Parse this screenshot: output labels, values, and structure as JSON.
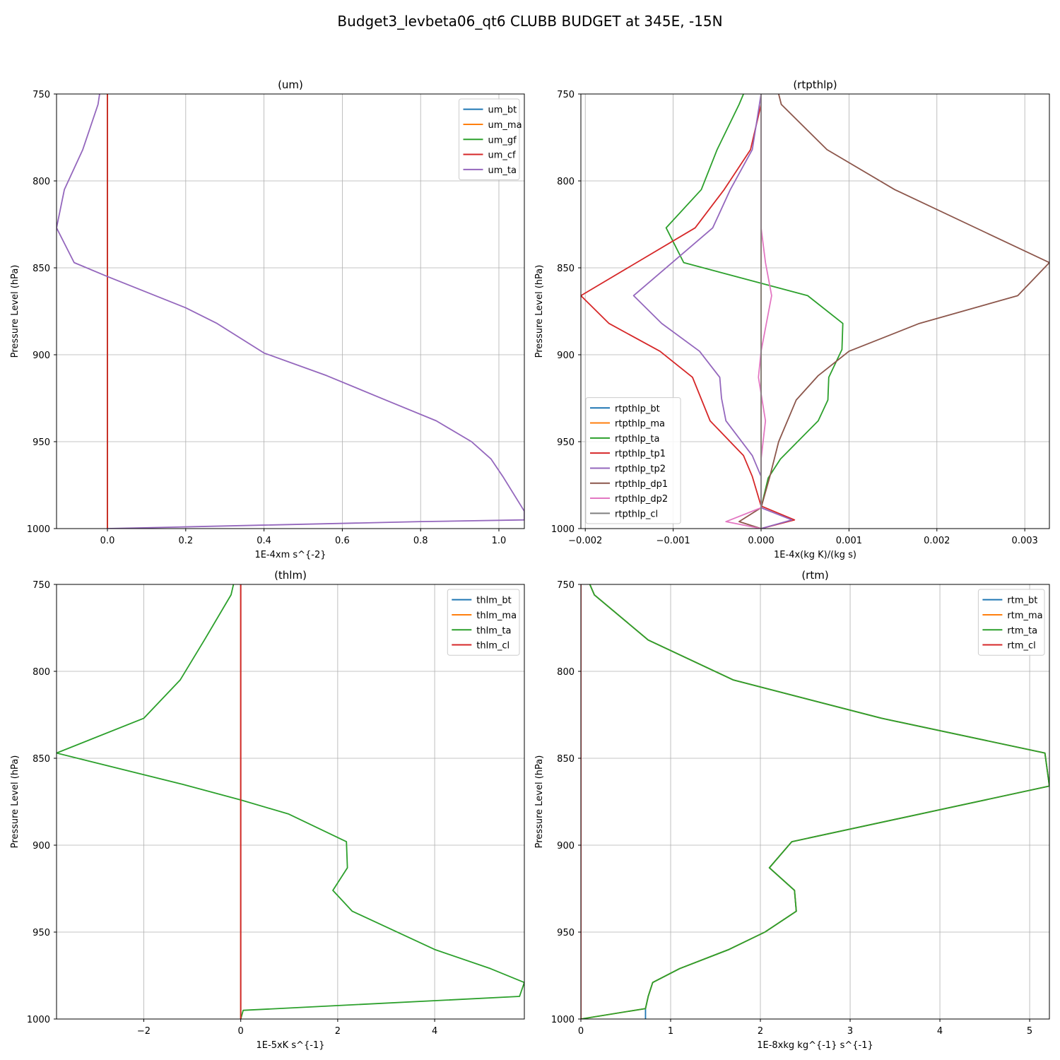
{
  "figure": {
    "title": "Budget3_levbeta06_qt6 CLUBB BUDGET at 345E, -15N"
  },
  "chart_data": [
    {
      "type": "line",
      "title": "(um)",
      "xlabel": "1E-4xm s^{-2}",
      "ylabel": "Pressure Level (hPa)",
      "xlim": [
        -0.13,
        1.065
      ],
      "ylim": [
        1000,
        750
      ],
      "y_inverted": true,
      "xticks": [
        0.0,
        0.2,
        0.4,
        0.6,
        0.8,
        1.0
      ],
      "xtick_labels": [
        "0.0",
        "0.2",
        "0.4",
        "0.6",
        "0.8",
        "1.0"
      ],
      "yticks": [
        750,
        800,
        850,
        900,
        950,
        1000
      ],
      "ytick_labels": [
        "750",
        "800",
        "850",
        "900",
        "950",
        "1000"
      ],
      "grid": true,
      "legend": "top-right",
      "series": [
        {
          "name": "um_bt",
          "color": "#1f77b4",
          "points": [
            [
              0,
              750
            ],
            [
              0,
              1000
            ]
          ]
        },
        {
          "name": "um_ma",
          "color": "#ff7f0e",
          "points": [
            [
              0,
              750
            ],
            [
              0,
              1000
            ]
          ]
        },
        {
          "name": "um_gf",
          "color": "#2ca02c",
          "points": [
            [
              0,
              750
            ],
            [
              0,
              1000
            ]
          ]
        },
        {
          "name": "um_cf",
          "color": "#d62728",
          "points": [
            [
              0,
              750
            ],
            [
              0,
              1000
            ]
          ]
        },
        {
          "name": "um_ta",
          "color": "#9467bd",
          "points": [
            [
              -0.02,
              750
            ],
            [
              -0.024,
              756
            ],
            [
              -0.063,
              782
            ],
            [
              -0.11,
              805
            ],
            [
              -0.13,
              827
            ],
            [
              -0.085,
              847
            ],
            [
              0.0,
              855
            ],
            [
              0.1,
              864
            ],
            [
              0.2,
              873
            ],
            [
              0.28,
              882
            ],
            [
              0.4,
              899
            ],
            [
              0.56,
              912
            ],
            [
              0.71,
              926
            ],
            [
              0.84,
              938
            ],
            [
              0.93,
              950
            ],
            [
              0.98,
              960
            ],
            [
              1.01,
              970
            ],
            [
              1.065,
              990
            ],
            [
              1.065,
              995
            ],
            [
              0.8,
              996
            ],
            [
              0.4,
              998
            ],
            [
              0.2,
              999
            ],
            [
              0.0,
              1000
            ]
          ]
        }
      ]
    },
    {
      "type": "line",
      "title": "(rtpthlp)",
      "xlabel": "1E-4x(kg K)/(kg s)",
      "ylabel": "Pressure Level (hPa)",
      "xlim": [
        -0.00205,
        0.00328
      ],
      "ylim": [
        1000,
        750
      ],
      "y_inverted": true,
      "xticks": [
        -0.002,
        -0.001,
        0.0,
        0.001,
        0.002,
        0.003
      ],
      "xtick_labels": [
        "−0.002",
        "−0.001",
        "0.000",
        "0.001",
        "0.002",
        "0.003"
      ],
      "yticks": [
        750,
        800,
        850,
        900,
        950,
        1000
      ],
      "ytick_labels": [
        "750",
        "800",
        "850",
        "900",
        "950",
        "1000"
      ],
      "grid": true,
      "legend": "bottom-left",
      "series": [
        {
          "name": "rtpthlp_bt",
          "color": "#1f77b4",
          "points": [
            [
              0,
              750
            ],
            [
              0,
              1000
            ]
          ]
        },
        {
          "name": "rtpthlp_ma",
          "color": "#ff7f0e",
          "points": [
            [
              0,
              750
            ],
            [
              0,
              1000
            ]
          ]
        },
        {
          "name": "rtpthlp_ta",
          "color": "#2ca02c",
          "points": [
            [
              -0.0002,
              750
            ],
            [
              -0.00025,
              756
            ],
            [
              -0.0005,
              782
            ],
            [
              -0.00068,
              805
            ],
            [
              -0.00108,
              827
            ],
            [
              -0.00088,
              847
            ],
            [
              0.00053,
              866
            ],
            [
              0.00093,
              882
            ],
            [
              0.00092,
              897
            ],
            [
              0.00077,
              913
            ],
            [
              0.00076,
              926
            ],
            [
              0.00065,
              938
            ],
            [
              0.00022,
              960
            ],
            [
              8e-05,
              971
            ],
            [
              0.0,
              988
            ],
            [
              0.0,
              1000
            ]
          ]
        },
        {
          "name": "rtpthlp_tp1",
          "color": "#d62728",
          "points": [
            [
              0.0,
              750
            ],
            [
              0.0,
              756
            ],
            [
              -0.00012,
              782
            ],
            [
              -0.00042,
              805
            ],
            [
              -0.00075,
              827
            ],
            [
              -0.00205,
              866
            ],
            [
              -0.00173,
              882
            ],
            [
              -0.00115,
              898
            ],
            [
              -0.00078,
              913
            ],
            [
              -0.00058,
              938
            ],
            [
              -0.0002,
              958
            ],
            [
              -0.0001,
              970
            ],
            [
              0.0,
              987
            ],
            [
              0.00038,
              995
            ],
            [
              0.0,
              1000
            ]
          ]
        },
        {
          "name": "rtpthlp_tp2",
          "color": "#9467bd",
          "points": [
            [
              0.0,
              750
            ],
            [
              -0.0001,
              782
            ],
            [
              -0.00035,
              805
            ],
            [
              -0.00055,
              827
            ],
            [
              -0.00145,
              866
            ],
            [
              -0.00113,
              882
            ],
            [
              -0.0007,
              898
            ],
            [
              -0.00047,
              913
            ],
            [
              -0.00045,
              925
            ],
            [
              -0.0004,
              938
            ],
            [
              -0.0001,
              958
            ],
            [
              0.0,
              970
            ],
            [
              0.0,
              988
            ],
            [
              0.00035,
              995
            ],
            [
              0.0,
              1000
            ]
          ]
        },
        {
          "name": "rtpthlp_dp1",
          "color": "#8c564b",
          "points": [
            [
              0.0002,
              750
            ],
            [
              0.00023,
              756
            ],
            [
              0.00075,
              782
            ],
            [
              0.00152,
              805
            ],
            [
              0.00328,
              847
            ],
            [
              0.00292,
              866
            ],
            [
              0.0018,
              882
            ],
            [
              0.001,
              898
            ],
            [
              0.00065,
              912
            ],
            [
              0.0004,
              926
            ],
            [
              0.0002,
              950
            ],
            [
              0.0001,
              970
            ],
            [
              0.0,
              988
            ],
            [
              -0.00025,
              996
            ],
            [
              0.0,
              1000
            ]
          ]
        },
        {
          "name": "rtpthlp_dp2",
          "color": "#e377c2",
          "points": [
            [
              0.0,
              750
            ],
            [
              0.0,
              827
            ],
            [
              5e-05,
              847
            ],
            [
              0.00012,
              866
            ],
            [
              0.0,
              898
            ],
            [
              -3e-05,
              913
            ],
            [
              5e-05,
              938
            ],
            [
              0.0,
              960
            ],
            [
              0.0,
              988
            ],
            [
              -0.0004,
              996
            ],
            [
              0.0,
              1000
            ]
          ]
        },
        {
          "name": "rtpthlp_cl",
          "color": "#7f7f7f",
          "points": [
            [
              0,
              750
            ],
            [
              0,
              1000
            ]
          ]
        }
      ]
    },
    {
      "type": "line",
      "title": "(thlm)",
      "xlabel": "1E-5xK s^{-1}",
      "ylabel": "Pressure Level (hPa)",
      "xlim": [
        -3.8,
        5.85
      ],
      "ylim": [
        1000,
        750
      ],
      "y_inverted": true,
      "xticks": [
        -2,
        0,
        2,
        4
      ],
      "xtick_labels": [
        "−2",
        "0",
        "2",
        "4"
      ],
      "yticks": [
        750,
        800,
        850,
        900,
        950,
        1000
      ],
      "ytick_labels": [
        "750",
        "800",
        "850",
        "900",
        "950",
        "1000"
      ],
      "grid": true,
      "legend": "top-right",
      "series": [
        {
          "name": "thlm_bt",
          "color": "#1f77b4",
          "points": [
            [
              0,
              750
            ],
            [
              0,
              1000
            ]
          ]
        },
        {
          "name": "thlm_ma",
          "color": "#ff7f0e",
          "points": [
            [
              0,
              750
            ],
            [
              0,
              1000
            ]
          ]
        },
        {
          "name": "thlm_ta",
          "color": "#2ca02c",
          "points": [
            [
              -0.15,
              750
            ],
            [
              -0.2,
              756
            ],
            [
              -0.75,
              782
            ],
            [
              -1.25,
              805
            ],
            [
              -2.0,
              827
            ],
            [
              -3.8,
              847
            ],
            [
              -1.2,
              865
            ],
            [
              0.0,
              874
            ],
            [
              0.98,
              882
            ],
            [
              2.18,
              898
            ],
            [
              2.2,
              913
            ],
            [
              1.9,
              926
            ],
            [
              2.3,
              938
            ],
            [
              4.0,
              960
            ],
            [
              5.15,
              971
            ],
            [
              5.85,
              979
            ],
            [
              5.75,
              987
            ],
            [
              0.05,
              995
            ],
            [
              0.0,
              1000
            ]
          ]
        },
        {
          "name": "thlm_cl",
          "color": "#d62728",
          "points": [
            [
              0,
              750
            ],
            [
              0,
              1000
            ]
          ]
        }
      ]
    },
    {
      "type": "line",
      "title": "(rtm)",
      "xlabel": "1E-8xkg kg^{-1} s^{-1}",
      "ylabel": "Pressure Level (hPa)",
      "xlim": [
        0.0,
        5.22
      ],
      "ylim": [
        1000,
        750
      ],
      "y_inverted": true,
      "xticks": [
        0,
        1,
        2,
        3,
        4,
        5
      ],
      "xtick_labels": [
        "0",
        "1",
        "2",
        "3",
        "4",
        "5"
      ],
      "yticks": [
        750,
        800,
        850,
        900,
        950,
        1000
      ],
      "ytick_labels": [
        "750",
        "800",
        "850",
        "900",
        "950",
        "1000"
      ],
      "grid": true,
      "legend": "top-right",
      "series": [
        {
          "name": "rtm_bt",
          "color": "#1f77b4",
          "points": [
            [
              0.1,
              750
            ],
            [
              0.15,
              756
            ],
            [
              0.75,
              782
            ],
            [
              1.7,
              805
            ],
            [
              3.35,
              827
            ],
            [
              5.17,
              847
            ],
            [
              5.22,
              866
            ],
            [
              2.35,
              898
            ],
            [
              2.1,
              913
            ],
            [
              2.38,
              926
            ],
            [
              2.4,
              938
            ],
            [
              2.05,
              950
            ],
            [
              1.65,
              960
            ],
            [
              1.1,
              971
            ],
            [
              0.8,
              979
            ],
            [
              0.75,
              987
            ],
            [
              0.72,
              994
            ],
            [
              0.72,
              1000
            ]
          ]
        },
        {
          "name": "rtm_ma",
          "color": "#ff7f0e",
          "points": [
            [
              0.1,
              750
            ],
            [
              0.15,
              756
            ],
            [
              0.75,
              782
            ],
            [
              1.7,
              805
            ],
            [
              3.35,
              827
            ],
            [
              5.17,
              847
            ],
            [
              5.22,
              866
            ],
            [
              2.35,
              898
            ],
            [
              2.1,
              913
            ],
            [
              2.38,
              926
            ],
            [
              2.4,
              938
            ],
            [
              2.05,
              950
            ],
            [
              1.65,
              960
            ],
            [
              1.1,
              971
            ],
            [
              0.8,
              979
            ],
            [
              0.75,
              987
            ],
            [
              0.72,
              994
            ],
            [
              0.0,
              1000
            ]
          ]
        },
        {
          "name": "rtm_ta",
          "color": "#2ca02c",
          "points": [
            [
              0.1,
              750
            ],
            [
              0.15,
              756
            ],
            [
              0.75,
              782
            ],
            [
              1.7,
              805
            ],
            [
              3.35,
              827
            ],
            [
              5.17,
              847
            ],
            [
              5.22,
              866
            ],
            [
              2.35,
              898
            ],
            [
              2.1,
              913
            ],
            [
              2.38,
              926
            ],
            [
              2.4,
              938
            ],
            [
              2.05,
              950
            ],
            [
              1.65,
              960
            ],
            [
              1.1,
              971
            ],
            [
              0.8,
              979
            ],
            [
              0.75,
              987
            ],
            [
              0.72,
              994
            ],
            [
              0.0,
              1000
            ]
          ]
        },
        {
          "name": "rtm_cl",
          "color": "#d62728",
          "points": [
            [
              0.0,
              750
            ],
            [
              0.0,
              1000
            ]
          ]
        }
      ]
    }
  ]
}
